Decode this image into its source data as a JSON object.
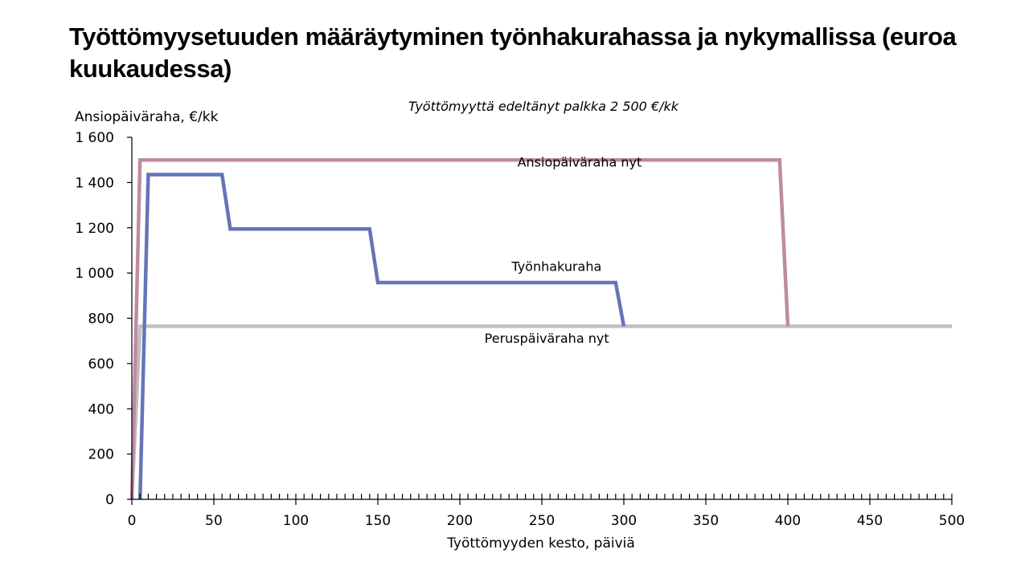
{
  "page_title": "Työttömyysetuuden määräytyminen työnhakurahassa ja nykymallissa (euroa kuukaudessa)",
  "chart_data": {
    "type": "line",
    "title": "Työttömyysetuuden määräytyminen työnhakurahassa ja nykymallissa (euroa kuukaudessa)",
    "subtitle": "Työttömyyttä edeltänyt palkka 2 500 €/kk",
    "xlabel": "Työttömyyden kesto, päiviä",
    "ylabel": "Ansiopäiväraha, €/kk",
    "xlim": [
      0,
      500
    ],
    "ylim": [
      0,
      1600
    ],
    "x_ticks": [
      0,
      50,
      100,
      150,
      200,
      250,
      300,
      350,
      400,
      450,
      500
    ],
    "x_tick_labels": [
      "0",
      "50",
      "100",
      "150",
      "200",
      "250",
      "300",
      "350",
      "400",
      "450",
      "500"
    ],
    "y_ticks": [
      0,
      200,
      400,
      600,
      800,
      1000,
      1200,
      1400,
      1600
    ],
    "y_tick_labels": [
      "0",
      "200",
      "400",
      "600",
      "800",
      "1 000",
      "1 200",
      "1 400",
      "1 600"
    ],
    "x_minor_tick_step": 5,
    "grid": false,
    "legend": "none",
    "series": [
      {
        "name": "Ansiopäiväraha nyt",
        "color": "#c08aa3",
        "points": [
          [
            0,
            0
          ],
          [
            5,
            1500
          ],
          [
            395,
            1500
          ],
          [
            400,
            765
          ]
        ],
        "label_at": [
          273,
          1470
        ]
      },
      {
        "name": "Työnhakuraha",
        "color": "#6674b8",
        "points": [
          [
            5,
            0
          ],
          [
            10,
            1435
          ],
          [
            55,
            1435
          ],
          [
            60,
            1195
          ],
          [
            145,
            1195
          ],
          [
            150,
            958
          ],
          [
            295,
            958
          ],
          [
            300,
            765
          ]
        ],
        "label_at": [
          259,
          1010
        ]
      },
      {
        "name": "Peruspäiväraha nyt",
        "color": "#c0c0c0",
        "points": [
          [
            0,
            0
          ],
          [
            5,
            765
          ],
          [
            500,
            765
          ]
        ],
        "label_at": [
          253,
          692
        ]
      }
    ]
  }
}
